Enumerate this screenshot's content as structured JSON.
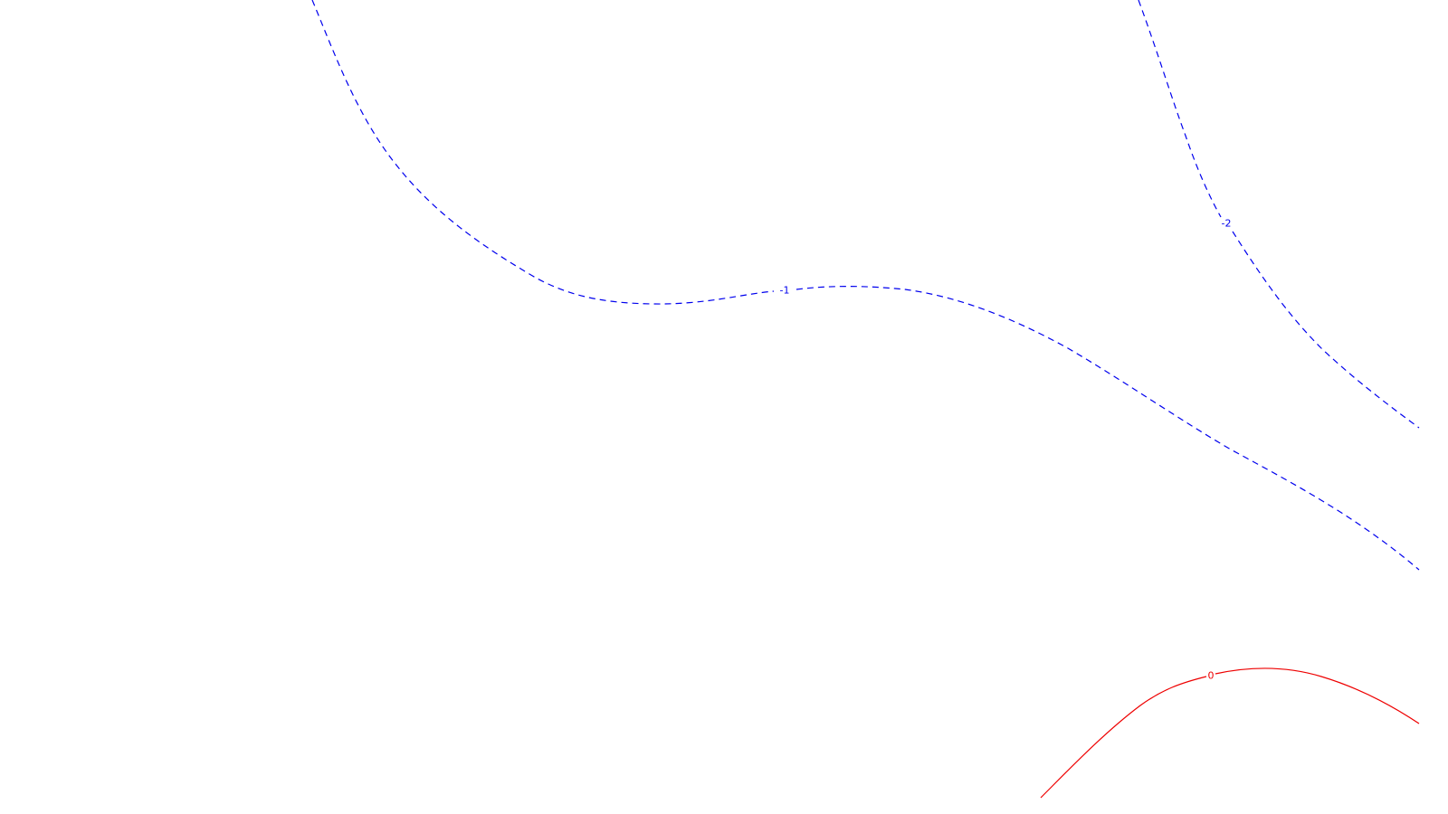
{
  "contours": [
    {
      "id": "contour-minus-1",
      "label": "-1",
      "style": "dashed",
      "color": "#0000ee"
    },
    {
      "id": "contour-minus-2",
      "label": "-2",
      "style": "dashed",
      "color": "#0000ee"
    },
    {
      "id": "contour-zero",
      "label": "0",
      "style": "solid",
      "color": "#ee0000"
    }
  ]
}
